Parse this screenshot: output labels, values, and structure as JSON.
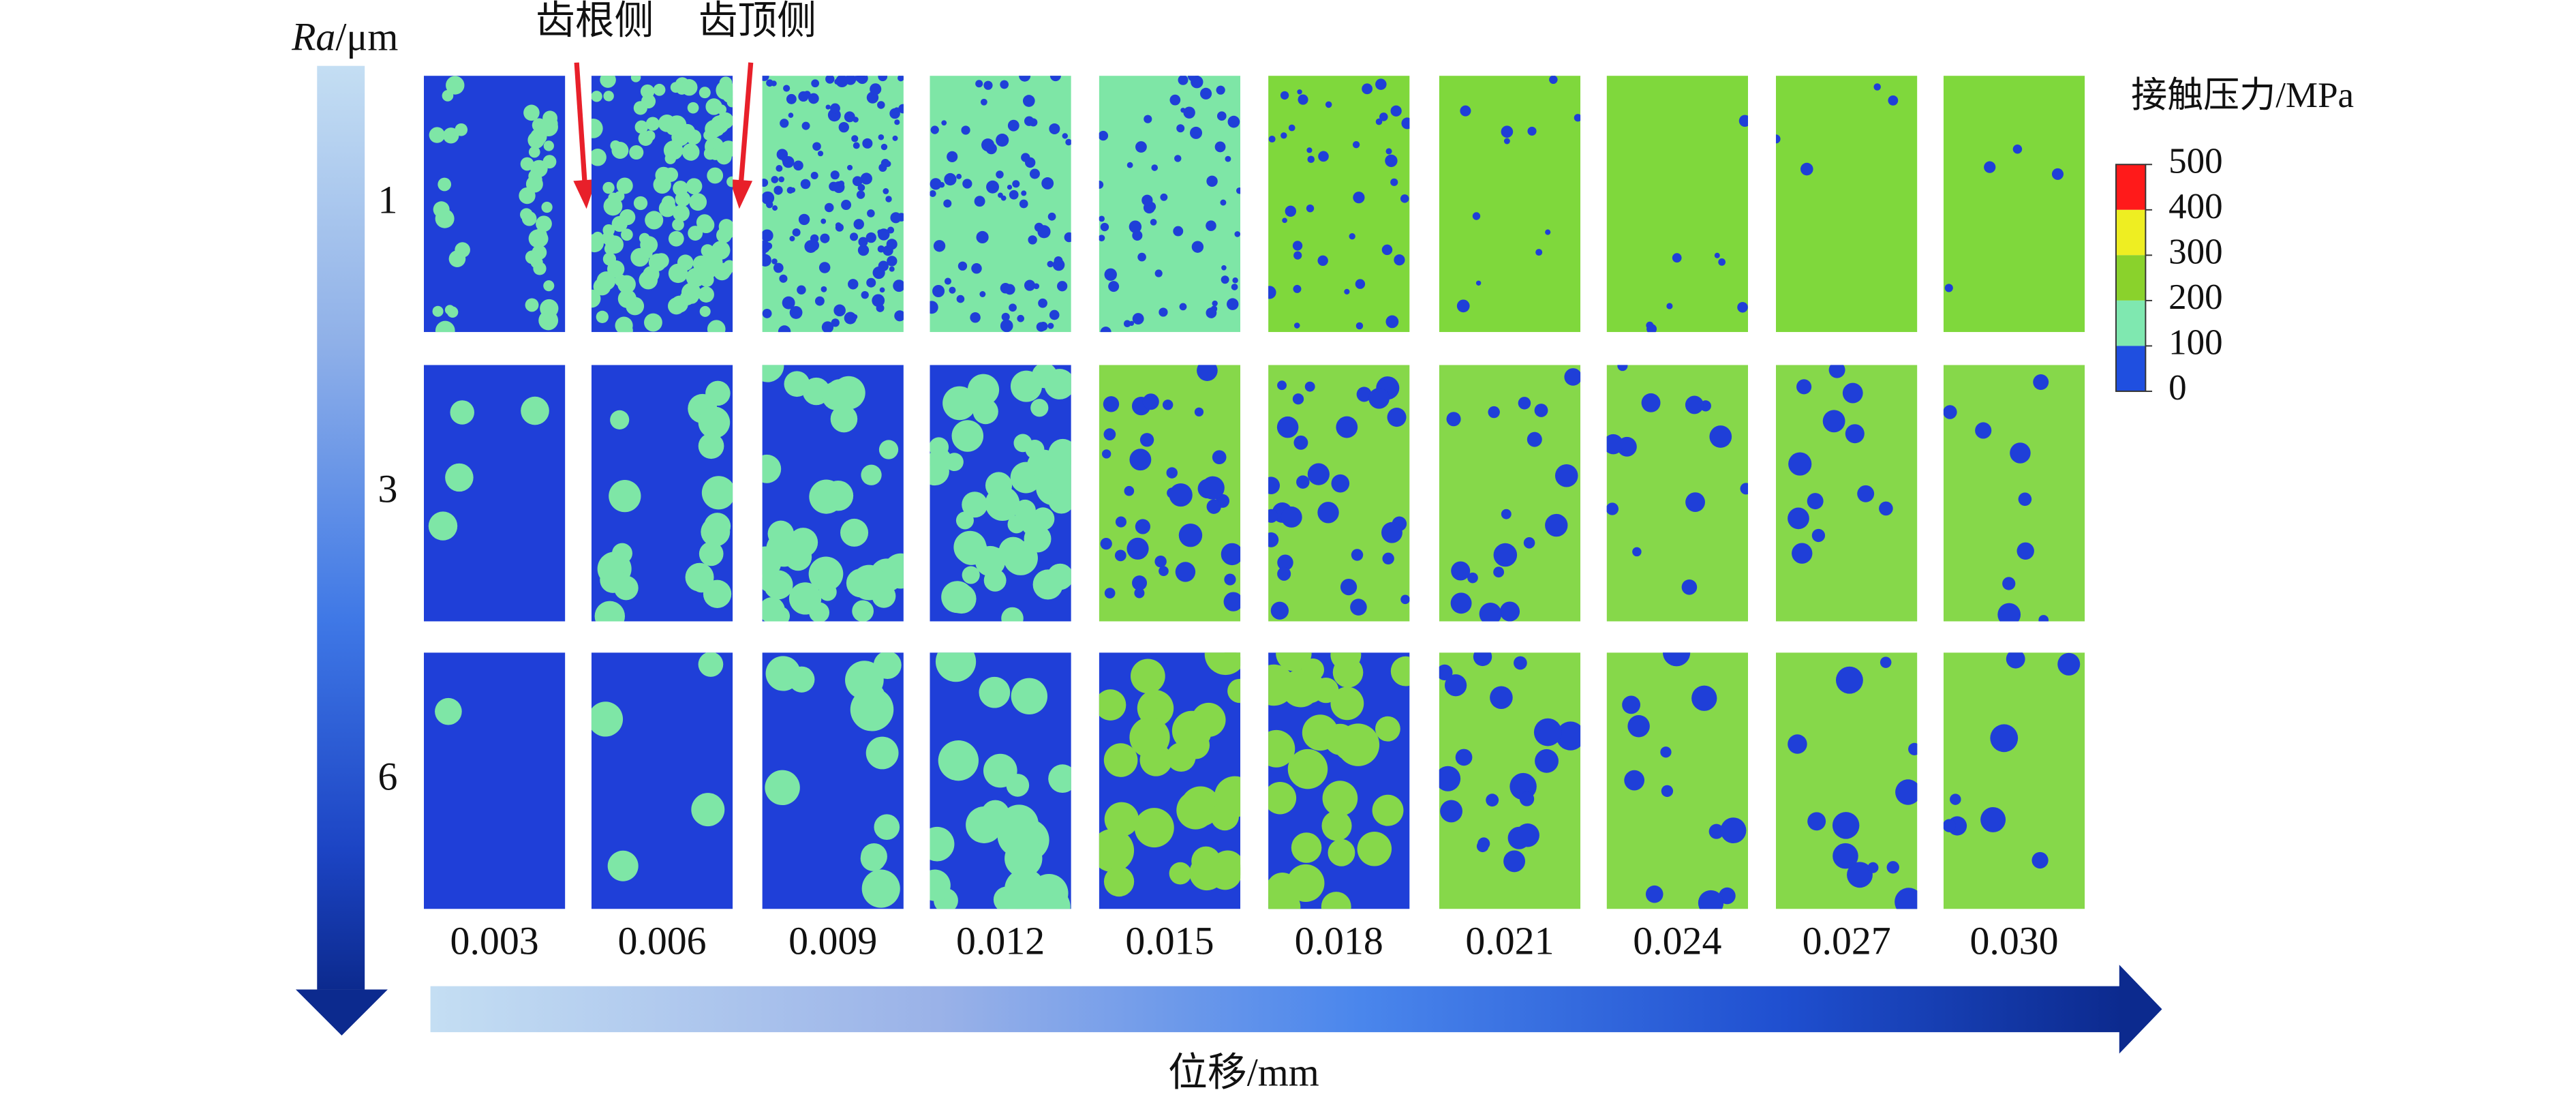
{
  "y_axis": {
    "symbol": "Ra",
    "unit": "/μm",
    "rows": [
      "1",
      "3",
      "6"
    ]
  },
  "x_axis": {
    "label": "位移/mm",
    "columns": [
      "0.003",
      "0.006",
      "0.009",
      "0.012",
      "0.015",
      "0.018",
      "0.021",
      "0.024",
      "0.027",
      "0.030"
    ]
  },
  "annotations": {
    "root_side": "齿根侧",
    "tip_side": "齿顶侧"
  },
  "legend": {
    "title": "接触压力/MPa",
    "range": [
      0,
      500
    ],
    "ticks": [
      500,
      400,
      300,
      200,
      100,
      0
    ],
    "colors": [
      "#ff1a1a",
      "#eeee22",
      "#8ad22c",
      "#7fe8b0",
      "#1f4fe0"
    ]
  }
}
